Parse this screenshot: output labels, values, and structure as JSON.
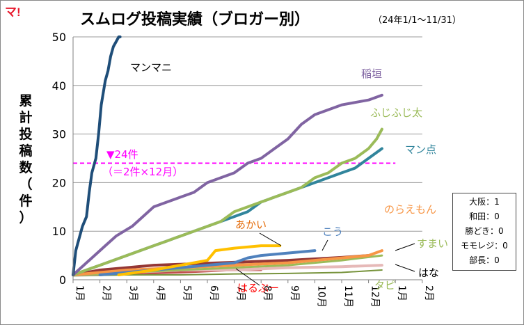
{
  "logo": "マ!",
  "title": "スムログ投稿実績（ブロガー別）",
  "subtitle": "（24年1/1〜11/31）",
  "colors": {
    "logo": "#e8192c",
    "target": "#ff00ff",
    "grid": "#9a9a9a"
  },
  "target": {
    "label": "▼24件",
    "sublabel": "（＝2件×12月）"
  },
  "zero_box": [
    "大阪：1",
    "和田：0",
    "勝どき：0",
    "モモレジ：0",
    "部長：0"
  ],
  "chart_data": {
    "type": "line",
    "title": "スムログ投稿実績（ブロガー別）",
    "subtitle": "（24年1/1〜11/31）",
    "ylabel": "累計投稿数（件）",
    "xlabel": "",
    "ylim": [
      0,
      50
    ],
    "yticks": [
      0,
      10,
      20,
      30,
      40,
      50
    ],
    "xlim": [
      1,
      14
    ],
    "xticks": [
      "1月",
      "2月",
      "3月",
      "4月",
      "5月",
      "6月",
      "7月",
      "8月",
      "9月",
      "10月",
      "11月",
      "12月",
      "1月",
      "2月"
    ],
    "grid": true,
    "target_line": 24,
    "series": [
      {
        "name": "マンマニ",
        "color": "#1f4e79",
        "width": 4,
        "label_color": "#000000",
        "x": [
          1,
          1.1,
          1.2,
          1.35,
          1.5,
          1.6,
          1.7,
          1.85,
          1.95,
          2.05,
          2.2,
          2.3,
          2.4,
          2.5,
          2.6,
          2.7,
          2.75
        ],
        "y": [
          1,
          6,
          8,
          11,
          13,
          18,
          22,
          25,
          30,
          36,
          41,
          43,
          46,
          48,
          49,
          50,
          50
        ]
      },
      {
        "name": "稲垣",
        "color": "#8064a2",
        "width": 4,
        "label_color": "#8064a2",
        "x": [
          1,
          1.4,
          1.8,
          2.2,
          2.6,
          2.9,
          3.2,
          3.6,
          4,
          4.5,
          5,
          5.5,
          6,
          6.5,
          7,
          7.5,
          8,
          8.5,
          9,
          9.5,
          10,
          10.5,
          11,
          11.5,
          12,
          12.5
        ],
        "y": [
          1,
          3,
          5,
          7,
          9,
          10,
          11,
          13,
          15,
          16,
          17,
          18,
          20,
          21,
          22,
          24,
          25,
          27,
          29,
          32,
          34,
          35,
          36,
          36.5,
          37,
          38
        ]
      },
      {
        "name": "ふじふじ太",
        "color": "#9bbb59",
        "width": 4,
        "label_color": "#9bbb59",
        "x": [
          1,
          1.5,
          2,
          2.5,
          3,
          3.5,
          4,
          4.5,
          5,
          5.5,
          6,
          6.5,
          7,
          7.5,
          8,
          8.5,
          9,
          9.5,
          10,
          10.5,
          11,
          11.5,
          12,
          12.3,
          12.5
        ],
        "y": [
          1,
          2,
          3,
          4,
          5,
          6,
          7,
          8,
          9,
          10,
          11,
          12,
          14,
          15,
          16,
          17,
          18,
          19,
          21,
          22,
          24,
          25,
          27,
          29,
          31
        ]
      },
      {
        "name": "マン点",
        "color": "#31859c",
        "width": 4,
        "label_color": "#31859c",
        "x": [
          1,
          1.5,
          2,
          2.5,
          3,
          3.5,
          4,
          4.5,
          5,
          5.5,
          6,
          6.5,
          7,
          7.5,
          8,
          8.5,
          9,
          9.5,
          10,
          10.5,
          11,
          11.5,
          12,
          12.5
        ],
        "y": [
          1,
          2,
          3,
          4,
          5,
          6,
          7,
          8,
          9,
          10,
          11,
          12,
          13,
          14,
          16,
          17,
          18,
          19,
          20,
          21,
          22,
          23,
          25,
          27
        ]
      },
      {
        "name": "あかい",
        "color": "#ffc000",
        "width": 4,
        "label_color": "#e46c0a",
        "x": [
          2.7,
          4,
          5,
          6,
          6.3,
          7,
          8,
          8.7
        ],
        "y": [
          1,
          2,
          3,
          4,
          6,
          6.5,
          7,
          7
        ]
      },
      {
        "name": "こう",
        "color": "#4f81bd",
        "width": 4,
        "label_color": "#4f81bd",
        "x": [
          2,
          3,
          4,
          5,
          6,
          7,
          7.5,
          8,
          9,
          10
        ],
        "y": [
          1,
          1.5,
          2,
          2.5,
          3,
          3.5,
          4.5,
          5,
          5.5,
          6
        ]
      },
      {
        "name": "のらえもん",
        "color": "#f79646",
        "width": 4,
        "label_color": "#f79646",
        "x": [
          1,
          3,
          5,
          7,
          9,
          10,
          11,
          12,
          12.5
        ],
        "y": [
          1,
          2,
          2.5,
          3,
          3.5,
          4,
          4.5,
          5,
          6
        ]
      },
      {
        "name": "すまい",
        "color": "#9bbb59",
        "width": 3,
        "label_color": "#9bbb59",
        "x": [
          1,
          3,
          5,
          7,
          9,
          11,
          12.5
        ],
        "y": [
          1,
          1.5,
          2,
          2.5,
          3,
          4,
          5
        ]
      },
      {
        "name": "はな",
        "color": "#e6b9b8",
        "width": 4,
        "label_color": "#000000",
        "x": [
          1,
          3,
          5,
          7,
          9,
          11,
          12.5
        ],
        "y": [
          1,
          1.5,
          2,
          2,
          2.5,
          2.7,
          3
        ]
      },
      {
        "name": "タピ",
        "color": "#77933c",
        "width": 2,
        "label_color": "#9bbb59",
        "x": [
          1,
          3,
          5,
          7,
          9,
          11,
          12.5
        ],
        "y": [
          0.8,
          1,
          1,
          1.2,
          1.3,
          1.5,
          2
        ]
      },
      {
        "name": "はるぶー",
        "color": "#c0504d",
        "width": 3,
        "label_color": "#ff0000",
        "x": [
          1,
          3,
          5,
          7,
          8
        ],
        "y": [
          1,
          1.2,
          1.5,
          2,
          2
        ]
      },
      {
        "name": "",
        "color": "#953735",
        "width": 4,
        "label_color": "#953735",
        "x": [
          1,
          2,
          3,
          4,
          5,
          6,
          7,
          8,
          9,
          10,
          11,
          12
        ],
        "y": [
          1,
          2,
          2.5,
          3,
          3.2,
          3.4,
          3.6,
          3.8,
          4,
          4.3,
          4.6,
          5
        ]
      }
    ]
  }
}
